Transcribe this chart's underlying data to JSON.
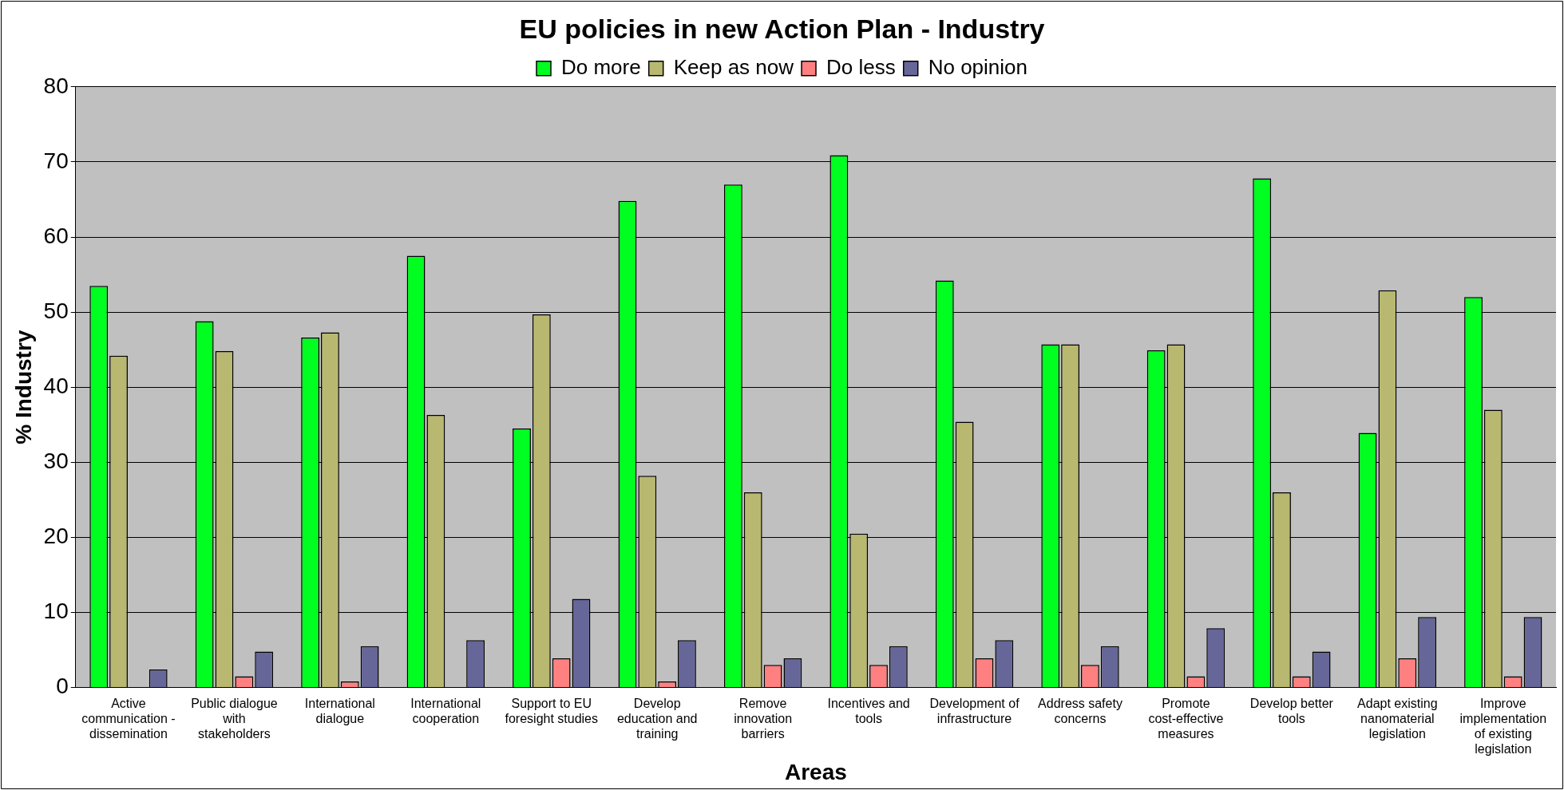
{
  "chart_data": {
    "type": "bar",
    "title": "EU policies in new Action Plan - Industry",
    "xlabel": "Areas",
    "ylabel": "% Industry",
    "categories": [
      "Active communication - dissemination",
      "Public dialogue with stakeholders",
      "International dialogue",
      "International cooperation",
      "Support to EU foresight studies",
      "Develop education and training",
      "Remove innovation barriers",
      "Incentives and tools",
      "Development of infrastructure",
      "Address safety concerns",
      "Promote cost-effective measures",
      "Develop better tools",
      "Adapt existing nanomaterial legislation",
      "Improve implementation of existing legislation"
    ],
    "series": [
      {
        "name": "Do more",
        "color": "#00ff20",
        "values": [
          53.5,
          48.8,
          46.6,
          57.5,
          34.5,
          64.8,
          67,
          70.9,
          54.2,
          45.7,
          44.9,
          67.8,
          33.9,
          52
        ]
      },
      {
        "name": "Keep as now",
        "color": "#b8b870",
        "values": [
          44.2,
          44.8,
          47.3,
          36.3,
          49.7,
          28.2,
          26,
          20.5,
          35.4,
          45.7,
          45.7,
          26,
          52.9,
          37
        ]
      },
      {
        "name": "Do less",
        "color": "#ff8080",
        "values": [
          0,
          1.5,
          0.8,
          0,
          3.9,
          0.8,
          3,
          3,
          3.9,
          3,
          1.5,
          1.5,
          3.9,
          1.5
        ]
      },
      {
        "name": "No opinion",
        "color": "#666699",
        "values": [
          2.4,
          4.8,
          5.5,
          6.3,
          11.8,
          6.3,
          3.9,
          5.5,
          6.3,
          5.5,
          7.9,
          4.8,
          9.4,
          9.4
        ]
      }
    ],
    "ylim": [
      0,
      80
    ],
    "yticks": [
      0,
      10,
      20,
      30,
      40,
      50,
      60,
      70,
      80
    ],
    "grid": "y",
    "legend": "top"
  }
}
